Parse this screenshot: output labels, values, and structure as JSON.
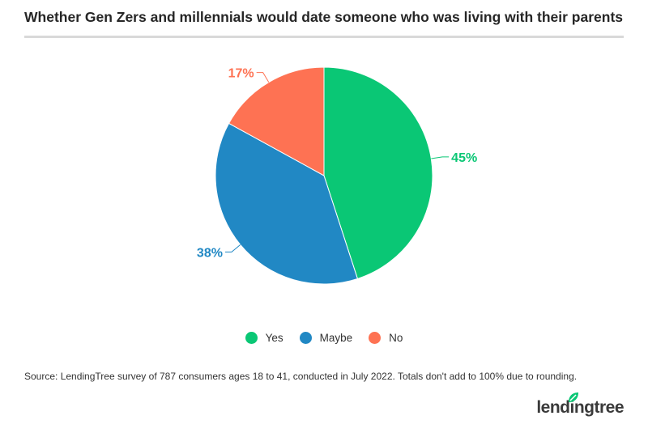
{
  "title": "Whether Gen Zers and millennials would date someone who was living with their parents",
  "source": "Source: LendingTree  survey of 787 consumers ages 18 to 41, conducted in July 2022. Totals don't add to 100% due to rounding.",
  "logo_text": "lendingtree",
  "colors": {
    "yes": "#0ac775",
    "maybe": "#2188c4",
    "no": "#fe7253",
    "logo_leaf": "#0ac775"
  },
  "chart_data": {
    "type": "pie",
    "title": "Whether Gen Zers and millennials would date someone who was living with their parents",
    "slices": [
      {
        "label": "Yes",
        "value": 45,
        "display": "45%",
        "color": "#0ac775"
      },
      {
        "label": "Maybe",
        "value": 38,
        "display": "38%",
        "color": "#2188c4"
      },
      {
        "label": "No",
        "value": 17,
        "display": "17%",
        "color": "#fe7253"
      }
    ],
    "legend_position": "bottom-center"
  }
}
